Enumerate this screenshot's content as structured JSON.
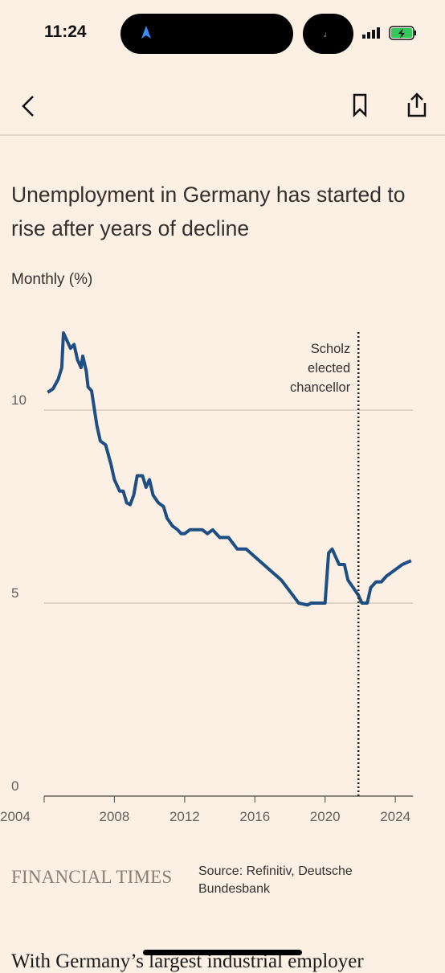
{
  "status_bar": {
    "time": "11:24"
  },
  "chart_data": {
    "type": "line",
    "title": "Unemployment in Germany has started to rise after years of decline",
    "subtitle": "Monthly (%)",
    "x": [
      2004.2,
      2004.5,
      2004.8,
      2005.0,
      2005.1,
      2005.3,
      2005.5,
      2005.7,
      2005.9,
      2006.1,
      2006.2,
      2006.4,
      2006.5,
      2006.7,
      2007.0,
      2007.2,
      2007.5,
      2007.8,
      2008.0,
      2008.3,
      2008.5,
      2008.7,
      2008.9,
      2009.1,
      2009.3,
      2009.6,
      2009.8,
      2010.0,
      2010.2,
      2010.5,
      2010.8,
      2011.0,
      2011.3,
      2011.6,
      2011.8,
      2012.0,
      2012.3,
      2012.6,
      2013.0,
      2013.3,
      2013.6,
      2014.0,
      2014.5,
      2015.0,
      2015.5,
      2016.0,
      2016.5,
      2017.0,
      2017.5,
      2018.0,
      2018.5,
      2019.0,
      2019.2,
      2020.0,
      2020.2,
      2020.4,
      2020.6,
      2020.8,
      2021.1,
      2021.3,
      2021.6,
      2021.9,
      2022.1,
      2022.4,
      2022.6,
      2022.9,
      2023.2,
      2023.5,
      2023.8,
      2024.1,
      2024.4,
      2024.9
    ],
    "values": [
      10.46,
      10.55,
      10.8,
      11.1,
      12.0,
      11.8,
      11.6,
      11.7,
      11.3,
      11.1,
      11.4,
      11.0,
      10.6,
      10.5,
      9.6,
      9.2,
      9.1,
      8.6,
      8.2,
      7.9,
      7.9,
      7.6,
      7.55,
      7.8,
      8.3,
      8.3,
      8.0,
      8.2,
      7.8,
      7.6,
      7.5,
      7.2,
      7.0,
      6.9,
      6.8,
      6.8,
      6.9,
      6.9,
      6.9,
      6.8,
      6.9,
      6.7,
      6.7,
      6.4,
      6.4,
      6.2,
      6.0,
      5.8,
      5.6,
      5.3,
      5.0,
      4.95,
      5.0,
      5.0,
      6.3,
      6.4,
      6.2,
      6.0,
      6.0,
      5.6,
      5.4,
      5.2,
      5.0,
      5.0,
      5.4,
      5.55,
      5.55,
      5.7,
      5.8,
      5.9,
      6.0,
      6.1
    ],
    "color": "#1d4e84",
    "xlim": [
      2004,
      2025
    ],
    "ylim": [
      0,
      12.2
    ],
    "xticks": [
      2004,
      2008,
      2012,
      2016,
      2020,
      2024
    ],
    "yticks": [
      0,
      5,
      10
    ],
    "grid": true,
    "annotation": {
      "x": 2021.9,
      "text": [
        "Scholz",
        "elected",
        "chancellor"
      ]
    }
  },
  "footer": {
    "logo": "FINANCIAL TIMES",
    "source": "Source: Refinitiv, Deutsche Bundesbank"
  },
  "article": {
    "first_line": "With Germany’s largest industrial employer"
  }
}
